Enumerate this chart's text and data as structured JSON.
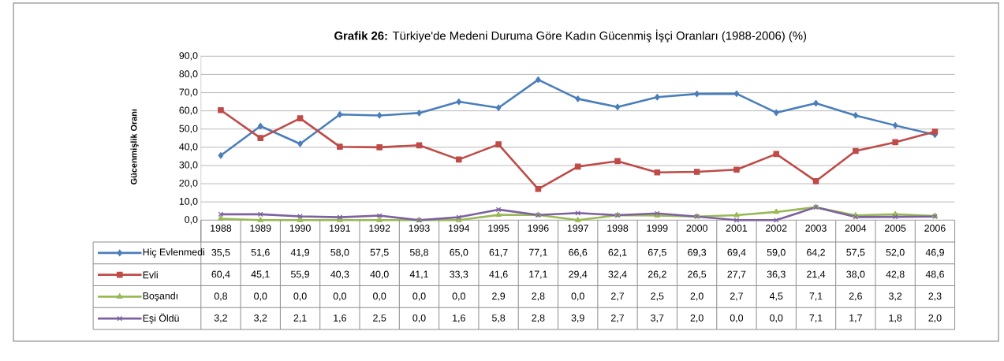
{
  "chart_data": {
    "type": "line",
    "title": "**Grafik 26:** Türkiye'de Medeni Duruma Göre Kadın  Gücenmiş İşçi Oranları (1988-2006) (%)",
    "ylabel": "Gücenmişlik Oranı",
    "categories": [
      "1988",
      "1989",
      "1990",
      "1991",
      "1992",
      "1993",
      "1994",
      "1995",
      "1996",
      "1997",
      "1998",
      "1999",
      "2000",
      "2001",
      "2002",
      "2003",
      "2004",
      "2005",
      "2006"
    ],
    "ylim": [
      0,
      90
    ],
    "yticks": [
      {
        "value": 0,
        "label": "0,0"
      },
      {
        "value": 10,
        "label": "10,0"
      },
      {
        "value": 20,
        "label": "20,0"
      },
      {
        "value": 30,
        "label": "30,0"
      },
      {
        "value": 40,
        "label": "40,0"
      },
      {
        "value": 50,
        "label": "50,0"
      },
      {
        "value": 60,
        "label": "60,0"
      },
      {
        "value": 70,
        "label": "70,0"
      },
      {
        "value": 80,
        "label": "80,0"
      },
      {
        "value": 90,
        "label": "90,0"
      }
    ],
    "grid": "y",
    "legend": "bottom left",
    "series": [
      {
        "name": "Hiç Evlenmedi",
        "color": "#4a7ebb",
        "marker": "diamond",
        "values": [
          35.5,
          51.6,
          41.9,
          58.0,
          57.5,
          58.8,
          65.0,
          61.7,
          77.1,
          66.6,
          62.1,
          67.5,
          69.3,
          69.4,
          59.0,
          64.2,
          57.5,
          52.0,
          46.9
        ],
        "value_labels": [
          "35,5",
          "51,6",
          "41,9",
          "58,0",
          "57,5",
          "58,8",
          "65,0",
          "61,7",
          "77,1",
          "66,6",
          "62,1",
          "67,5",
          "69,3",
          "69,4",
          "59,0",
          "64,2",
          "57,5",
          "52,0",
          "46,9"
        ]
      },
      {
        "name": "Evli",
        "color": "#be4b48",
        "marker": "square",
        "values": [
          60.4,
          45.1,
          55.9,
          40.3,
          40.0,
          41.1,
          33.3,
          41.6,
          17.1,
          29.4,
          32.4,
          26.2,
          26.5,
          27.7,
          36.3,
          21.4,
          38.0,
          42.8,
          48.6
        ],
        "value_labels": [
          "60,4",
          "45,1",
          "55,9",
          "40,3",
          "40,0",
          "41,1",
          "33,3",
          "41,6",
          "17,1",
          "29,4",
          "32,4",
          "26,2",
          "26,5",
          "27,7",
          "36,3",
          "21,4",
          "38,0",
          "42,8",
          "48,6"
        ]
      },
      {
        "name": "Boşandı",
        "color": "#98b954",
        "marker": "triangle",
        "values": [
          0.8,
          0.0,
          0.0,
          0.0,
          0.0,
          0.0,
          0.0,
          2.9,
          2.8,
          0.0,
          2.7,
          2.5,
          2.0,
          2.7,
          4.5,
          7.1,
          2.6,
          3.2,
          2.3
        ],
        "value_labels": [
          "0,8",
          "0,0",
          "0,0",
          "0,0",
          "0,0",
          "0,0",
          "0,0",
          "2,9",
          "2,8",
          "0,0",
          "2,7",
          "2,5",
          "2,0",
          "2,7",
          "4,5",
          "7,1",
          "2,6",
          "3,2",
          "2,3"
        ]
      },
      {
        "name": "Eşi Öldü",
        "color": "#7d60a0",
        "marker": "cross",
        "values": [
          3.2,
          3.2,
          2.1,
          1.6,
          2.5,
          0.0,
          1.6,
          5.8,
          2.8,
          3.9,
          2.7,
          3.7,
          2.0,
          0.0,
          0.0,
          7.1,
          1.7,
          1.8,
          2.0
        ],
        "value_labels": [
          "3,2",
          "3,2",
          "2,1",
          "1,6",
          "2,5",
          "0,0",
          "1,6",
          "5,8",
          "2,8",
          "3,9",
          "2,7",
          "3,7",
          "2,0",
          "0,0",
          "0,0",
          "7,1",
          "1,7",
          "1,8",
          "2,0"
        ]
      }
    ]
  }
}
